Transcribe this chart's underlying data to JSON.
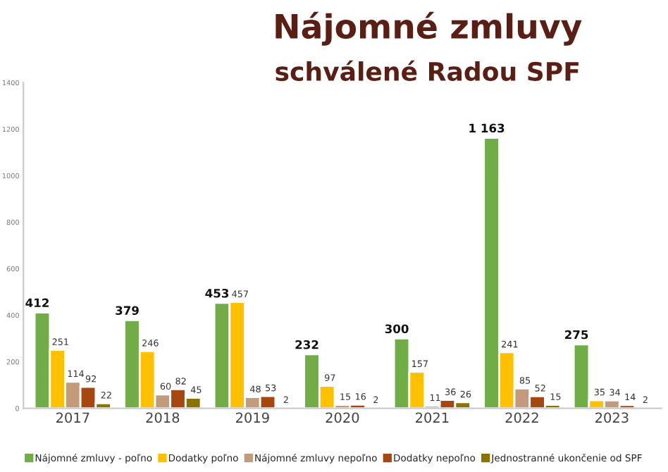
{
  "chart_data": {
    "type": "bar",
    "title": "Nájomné zmluvy",
    "subtitle": "schválené Radou SPF",
    "categories": [
      "2017",
      "2018",
      "2019",
      "2020",
      "2021",
      "2022",
      "2023"
    ],
    "series": [
      {
        "name": "Nájomné zmluvy - poľno",
        "color": "#70ad47",
        "values": [
          412,
          379,
          453,
          232,
          300,
          1163,
          275
        ],
        "value_labels": [
          "412",
          "379",
          "453",
          "232",
          "300",
          "1 163",
          "275"
        ]
      },
      {
        "name": "Dodatky poľno",
        "color": "#ffc000",
        "values": [
          251,
          246,
          457,
          97,
          157,
          241,
          35
        ],
        "value_labels": [
          "251",
          "246",
          "457",
          "97",
          "157",
          "241",
          "35"
        ]
      },
      {
        "name": "Nájomné zmluvy nepoľno",
        "color": "#c39a7a",
        "values": [
          114,
          60,
          48,
          15,
          11,
          85,
          34
        ],
        "value_labels": [
          "114",
          "60",
          "48",
          "15",
          "11",
          "85",
          "34"
        ]
      },
      {
        "name": "Dodatky nepoľno",
        "color": "#a5470f",
        "values": [
          92,
          82,
          53,
          16,
          36,
          52,
          14
        ],
        "value_labels": [
          "92",
          "82",
          "53",
          "16",
          "36",
          "52",
          "14"
        ]
      },
      {
        "name": "Jednostranné ukončenie od SPF",
        "color": "#8b7300",
        "values": [
          22,
          45,
          2,
          2,
          26,
          15,
          2
        ],
        "value_labels": [
          "22",
          "45",
          "2",
          "2",
          "26",
          "15",
          "2"
        ]
      }
    ],
    "ylim": [
      0,
      1400
    ],
    "yticks": [
      0,
      200,
      400,
      600,
      800,
      1000,
      1200,
      1400
    ],
    "grid": false,
    "legend": "bottom"
  }
}
